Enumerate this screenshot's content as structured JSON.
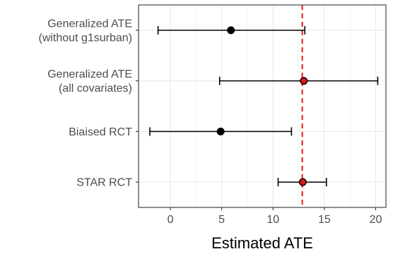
{
  "chart_data": {
    "type": "scatter",
    "title": "",
    "xlabel": "Estimated ATE",
    "ylabel": "",
    "xlim": [
      -3.1,
      21.0
    ],
    "xticks": [
      0,
      5,
      10,
      15,
      20
    ],
    "categories": [
      [
        "Generalized ATE",
        "(without g1surban)"
      ],
      [
        "Generalized ATE",
        "(all covariates)"
      ],
      [
        "Biaised RCT"
      ],
      [
        "STAR RCT"
      ]
    ],
    "estimates": [
      5.9,
      13.0,
      4.9,
      12.9
    ],
    "lower": [
      -1.2,
      4.8,
      -2.0,
      10.5
    ],
    "upper": [
      13.1,
      20.2,
      11.8,
      15.2
    ],
    "point_colors": [
      "#000000",
      "#d7191c",
      "#000000",
      "#d7191c"
    ],
    "reference_line": 12.85,
    "reference_color": "#e31a1c",
    "grid": true,
    "legend": "none"
  }
}
